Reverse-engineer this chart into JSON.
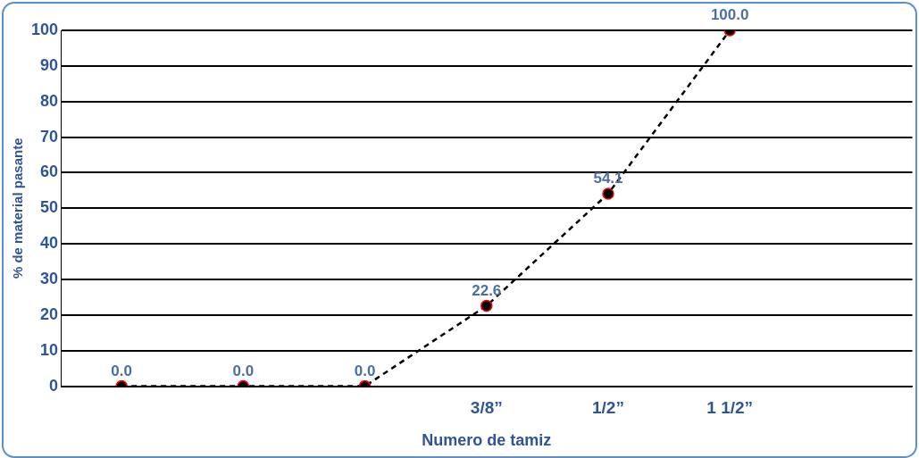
{
  "chart_data": {
    "type": "line",
    "xlabel": "Numero de tamiz",
    "ylabel": "% de material pasante",
    "categories": [
      null,
      null,
      null,
      "3/8”",
      "1/2”",
      "1 1/2”",
      null
    ],
    "values": [
      0,
      0,
      0,
      22.6,
      54.1,
      100,
      null
    ],
    "value_labels": [
      "0.0",
      "0.0",
      "0.0",
      "22.6",
      "54.1",
      "100.0",
      null
    ],
    "color": "#000000",
    "marker": "circle",
    "line_style": "dashed",
    "ylim": [
      0,
      100
    ],
    "yticks": [
      0,
      10,
      20,
      30,
      40,
      50,
      60,
      70,
      80,
      90,
      100
    ],
    "grid": "y",
    "legend": false
  }
}
